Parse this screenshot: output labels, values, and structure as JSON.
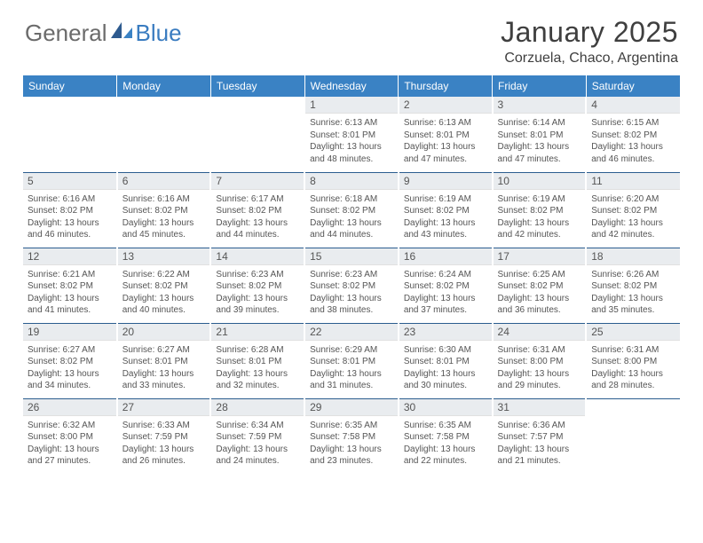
{
  "logo": {
    "text_general": "General",
    "text_blue": "Blue",
    "general_color": "#6b6b6b",
    "blue_color": "#3a7cc0"
  },
  "title": "January 2025",
  "location": "Corzuela, Chaco, Argentina",
  "header_bg": "#3a82c4",
  "header_text_color": "#ffffff",
  "row_divider_color": "#2b5d8f",
  "daynum_bg": "#e9ecef",
  "day_headers": [
    "Sunday",
    "Monday",
    "Tuesday",
    "Wednesday",
    "Thursday",
    "Friday",
    "Saturday"
  ],
  "weeks": [
    [
      null,
      null,
      null,
      {
        "num": "1",
        "sunrise": "6:13 AM",
        "sunset": "8:01 PM",
        "daylight": "13 hours and 48 minutes."
      },
      {
        "num": "2",
        "sunrise": "6:13 AM",
        "sunset": "8:01 PM",
        "daylight": "13 hours and 47 minutes."
      },
      {
        "num": "3",
        "sunrise": "6:14 AM",
        "sunset": "8:01 PM",
        "daylight": "13 hours and 47 minutes."
      },
      {
        "num": "4",
        "sunrise": "6:15 AM",
        "sunset": "8:02 PM",
        "daylight": "13 hours and 46 minutes."
      }
    ],
    [
      {
        "num": "5",
        "sunrise": "6:16 AM",
        "sunset": "8:02 PM",
        "daylight": "13 hours and 46 minutes."
      },
      {
        "num": "6",
        "sunrise": "6:16 AM",
        "sunset": "8:02 PM",
        "daylight": "13 hours and 45 minutes."
      },
      {
        "num": "7",
        "sunrise": "6:17 AM",
        "sunset": "8:02 PM",
        "daylight": "13 hours and 44 minutes."
      },
      {
        "num": "8",
        "sunrise": "6:18 AM",
        "sunset": "8:02 PM",
        "daylight": "13 hours and 44 minutes."
      },
      {
        "num": "9",
        "sunrise": "6:19 AM",
        "sunset": "8:02 PM",
        "daylight": "13 hours and 43 minutes."
      },
      {
        "num": "10",
        "sunrise": "6:19 AM",
        "sunset": "8:02 PM",
        "daylight": "13 hours and 42 minutes."
      },
      {
        "num": "11",
        "sunrise": "6:20 AM",
        "sunset": "8:02 PM",
        "daylight": "13 hours and 42 minutes."
      }
    ],
    [
      {
        "num": "12",
        "sunrise": "6:21 AM",
        "sunset": "8:02 PM",
        "daylight": "13 hours and 41 minutes."
      },
      {
        "num": "13",
        "sunrise": "6:22 AM",
        "sunset": "8:02 PM",
        "daylight": "13 hours and 40 minutes."
      },
      {
        "num": "14",
        "sunrise": "6:23 AM",
        "sunset": "8:02 PM",
        "daylight": "13 hours and 39 minutes."
      },
      {
        "num": "15",
        "sunrise": "6:23 AM",
        "sunset": "8:02 PM",
        "daylight": "13 hours and 38 minutes."
      },
      {
        "num": "16",
        "sunrise": "6:24 AM",
        "sunset": "8:02 PM",
        "daylight": "13 hours and 37 minutes."
      },
      {
        "num": "17",
        "sunrise": "6:25 AM",
        "sunset": "8:02 PM",
        "daylight": "13 hours and 36 minutes."
      },
      {
        "num": "18",
        "sunrise": "6:26 AM",
        "sunset": "8:02 PM",
        "daylight": "13 hours and 35 minutes."
      }
    ],
    [
      {
        "num": "19",
        "sunrise": "6:27 AM",
        "sunset": "8:02 PM",
        "daylight": "13 hours and 34 minutes."
      },
      {
        "num": "20",
        "sunrise": "6:27 AM",
        "sunset": "8:01 PM",
        "daylight": "13 hours and 33 minutes."
      },
      {
        "num": "21",
        "sunrise": "6:28 AM",
        "sunset": "8:01 PM",
        "daylight": "13 hours and 32 minutes."
      },
      {
        "num": "22",
        "sunrise": "6:29 AM",
        "sunset": "8:01 PM",
        "daylight": "13 hours and 31 minutes."
      },
      {
        "num": "23",
        "sunrise": "6:30 AM",
        "sunset": "8:01 PM",
        "daylight": "13 hours and 30 minutes."
      },
      {
        "num": "24",
        "sunrise": "6:31 AM",
        "sunset": "8:00 PM",
        "daylight": "13 hours and 29 minutes."
      },
      {
        "num": "25",
        "sunrise": "6:31 AM",
        "sunset": "8:00 PM",
        "daylight": "13 hours and 28 minutes."
      }
    ],
    [
      {
        "num": "26",
        "sunrise": "6:32 AM",
        "sunset": "8:00 PM",
        "daylight": "13 hours and 27 minutes."
      },
      {
        "num": "27",
        "sunrise": "6:33 AM",
        "sunset": "7:59 PM",
        "daylight": "13 hours and 26 minutes."
      },
      {
        "num": "28",
        "sunrise": "6:34 AM",
        "sunset": "7:59 PM",
        "daylight": "13 hours and 24 minutes."
      },
      {
        "num": "29",
        "sunrise": "6:35 AM",
        "sunset": "7:58 PM",
        "daylight": "13 hours and 23 minutes."
      },
      {
        "num": "30",
        "sunrise": "6:35 AM",
        "sunset": "7:58 PM",
        "daylight": "13 hours and 22 minutes."
      },
      {
        "num": "31",
        "sunrise": "6:36 AM",
        "sunset": "7:57 PM",
        "daylight": "13 hours and 21 minutes."
      },
      null
    ]
  ],
  "labels": {
    "sunrise_prefix": "Sunrise: ",
    "sunset_prefix": "Sunset: ",
    "daylight_prefix": "Daylight: "
  }
}
